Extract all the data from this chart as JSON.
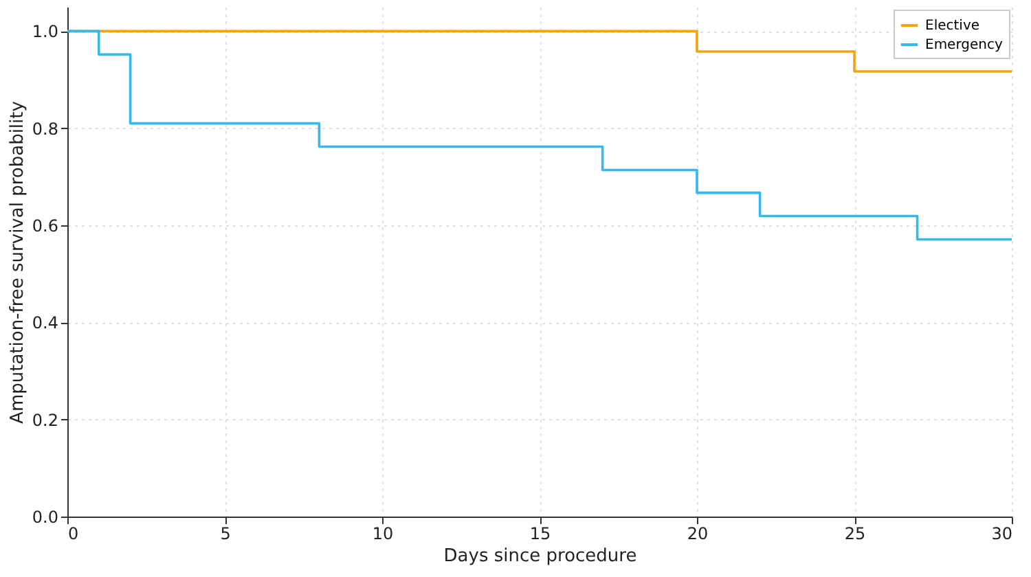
{
  "chart_data": {
    "type": "step",
    "xlabel": "Days since procedure",
    "ylabel": "Amputation-free survival probability",
    "xlim": [
      0,
      30
    ],
    "ylim": [
      0,
      1.05
    ],
    "xticks": [
      0,
      5,
      10,
      15,
      20,
      25,
      30
    ],
    "yticks": [
      {
        "value": 0,
        "label": "0.0"
      },
      {
        "value": 0.2,
        "label": "0.2"
      },
      {
        "value": 0.4,
        "label": "0.4"
      },
      {
        "value": 0.6,
        "label": "0.6"
      },
      {
        "value": 0.8,
        "label": "0.8"
      },
      {
        "value": 1,
        "label": "1.0"
      }
    ],
    "grid": true,
    "legend": "top right",
    "marker": "none",
    "line_style": "solid",
    "series": [
      {
        "name": "Elective",
        "color": "#f5a30f",
        "x": [
          0,
          20,
          25,
          30
        ],
        "values": [
          1.0,
          0.958,
          0.917,
          0.917
        ]
      },
      {
        "name": "Emergency",
        "color": "#35b8ea",
        "x": [
          0,
          1,
          2,
          8,
          17,
          20,
          22,
          27,
          30
        ],
        "values": [
          1.0,
          0.952,
          0.81,
          0.762,
          0.714,
          0.667,
          0.619,
          0.571,
          0.571
        ]
      }
    ]
  }
}
